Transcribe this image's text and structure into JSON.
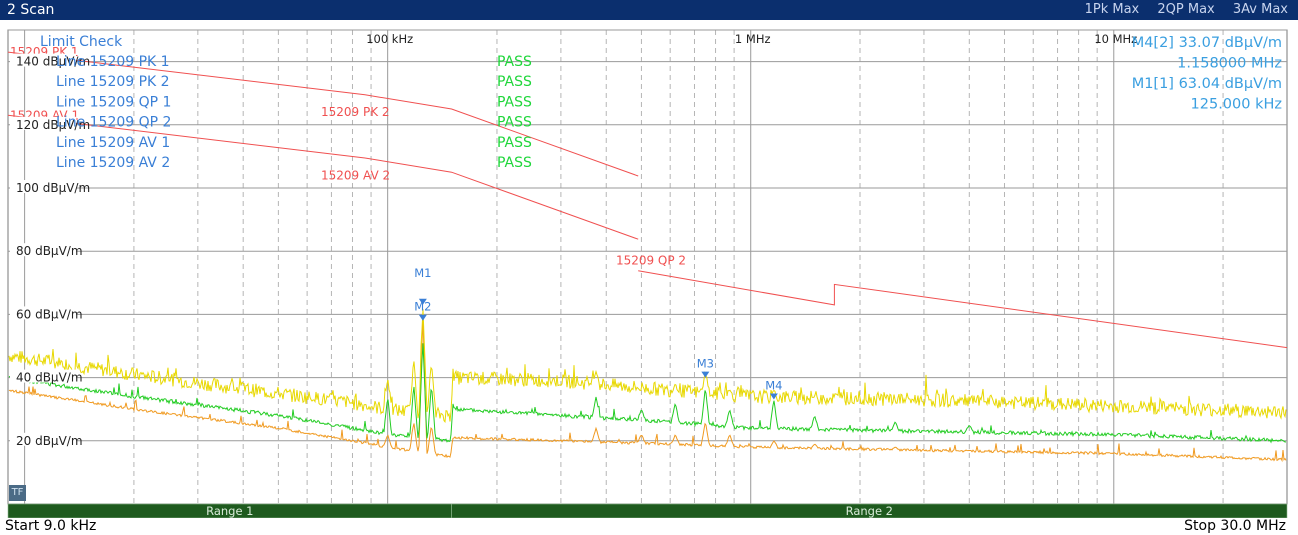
{
  "window": {
    "title": "2 Scan"
  },
  "legend": [
    {
      "label": "1Pk Max",
      "color": "#e8d800"
    },
    {
      "label": "2QP Max",
      "color": "#22cc22"
    },
    {
      "label": "3Av Max",
      "color": "#f09a20"
    }
  ],
  "footer": {
    "start": "Start 9.0 kHz",
    "stop": "Stop 30.0 MHz"
  },
  "badge": "TF",
  "limit_check": {
    "header": "Limit Check",
    "rows": [
      {
        "line": "Line 15209 PK 1",
        "result": "PASS"
      },
      {
        "line": "Line 15209 PK 2",
        "result": "PASS"
      },
      {
        "line": "Line 15209 QP 1",
        "result": "PASS"
      },
      {
        "line": "Line 15209 QP 2",
        "result": "PASS"
      },
      {
        "line": "Line 15209 AV 1",
        "result": "PASS"
      },
      {
        "line": "Line 15209 AV 2",
        "result": "PASS"
      }
    ]
  },
  "marker_info": [
    "M4[2] 33.07 dBµV/m",
    "1.158000 MHz",
    "M1[1] 63.04 dBµV/m",
    "125.000 kHz"
  ],
  "ranges": [
    {
      "label": "Range 1",
      "x_start": 0.009,
      "x_end": 0.15
    },
    {
      "label": "Range 2",
      "x_start": 0.15,
      "x_end": 30
    }
  ],
  "chart_data": {
    "type": "line",
    "x_scale": "log",
    "xlim": [
      0.009,
      30
    ],
    "x_unit": "MHz",
    "ylim": [
      0,
      150
    ],
    "x_tick_labels": [
      {
        "x": 0.1,
        "label": "100 kHz"
      },
      {
        "x": 1,
        "label": "1 MHz"
      },
      {
        "x": 10,
        "label": "10 MHz"
      }
    ],
    "y_tick_labels": [
      {
        "y": 140,
        "label": "140 dBµV/m"
      },
      {
        "y": 120,
        "label": "120 dBµV/m"
      },
      {
        "y": 100,
        "label": "100 dBµV/m"
      },
      {
        "y": 80,
        "label": "80 dBµV/m"
      },
      {
        "y": 60,
        "label": "60 dBµV/m"
      },
      {
        "y": 40,
        "label": "40 dBµV/m"
      },
      {
        "y": 20,
        "label": "20 dBµV/m"
      }
    ],
    "limit_lines": [
      {
        "name": "15209 PK 1",
        "color": "#f05050",
        "points": [
          [
            0.009,
            143
          ],
          [
            0.0866,
            129.5
          ]
        ]
      },
      {
        "name": "15209 PK 2",
        "color": "#f05050",
        "points": [
          [
            0.0866,
            129.5
          ],
          [
            0.15,
            125
          ],
          [
            0.49,
            103.8
          ]
        ]
      },
      {
        "name": "15209 AV 1",
        "color": "#f05050",
        "points": [
          [
            0.009,
            123
          ],
          [
            0.0866,
            109.5
          ]
        ]
      },
      {
        "name": "15209 AV 2",
        "color": "#f05050",
        "points": [
          [
            0.0866,
            109.5
          ],
          [
            0.15,
            105
          ],
          [
            0.49,
            83.8
          ]
        ]
      },
      {
        "name": "15209 QP 2",
        "color": "#f05050",
        "points": [
          [
            0.49,
            73.8
          ],
          [
            1.7,
            63
          ],
          [
            1.7,
            69.5
          ],
          [
            30,
            49.5
          ]
        ]
      }
    ],
    "limit_labels": [
      {
        "text": "15209 PK 1",
        "x": 0.009,
        "y": 143
      },
      {
        "text": "15209 AV 1",
        "x": 0.009,
        "y": 123
      },
      {
        "text": "15209 PK 2",
        "x": 0.0647,
        "y": 124
      },
      {
        "text": "15209 AV 2",
        "x": 0.0647,
        "y": 104
      },
      {
        "text": "15209 QP 2",
        "x": 0.42,
        "y": 77
      }
    ],
    "series": [
      {
        "name": "1Pk Max",
        "color": "#e8d800",
        "seed": 7,
        "noise": 2.2,
        "spur": 2,
        "base": [
          [
            0.009,
            47
          ],
          [
            0.02,
            41
          ],
          [
            0.05,
            35
          ],
          [
            0.08,
            32
          ],
          [
            0.1,
            30
          ],
          [
            0.149,
            28
          ],
          [
            0.151,
            40
          ],
          [
            0.3,
            39
          ],
          [
            0.6,
            36
          ],
          [
            1,
            34
          ],
          [
            3,
            33
          ],
          [
            10,
            31
          ],
          [
            30,
            29
          ]
        ]
      },
      {
        "name": "2QP Max",
        "color": "#22cc22",
        "seed": 13,
        "noise": 0.6,
        "spur": 1,
        "base": [
          [
            0.009,
            40
          ],
          [
            0.02,
            34
          ],
          [
            0.05,
            28
          ],
          [
            0.08,
            24
          ],
          [
            0.1,
            22
          ],
          [
            0.149,
            20
          ],
          [
            0.151,
            30
          ],
          [
            0.3,
            28
          ],
          [
            0.6,
            26
          ],
          [
            1,
            24
          ],
          [
            3,
            23
          ],
          [
            10,
            22
          ],
          [
            30,
            20
          ]
        ]
      },
      {
        "name": "3Av Max",
        "color": "#f09a20",
        "seed": 29,
        "noise": 0.4,
        "spur": 1,
        "base": [
          [
            0.009,
            36
          ],
          [
            0.02,
            30
          ],
          [
            0.05,
            24
          ],
          [
            0.08,
            20
          ],
          [
            0.1,
            18
          ],
          [
            0.149,
            15
          ],
          [
            0.151,
            21
          ],
          [
            0.3,
            20
          ],
          [
            0.6,
            19
          ],
          [
            1,
            18
          ],
          [
            3,
            17
          ],
          [
            10,
            16
          ],
          [
            30,
            14
          ]
        ]
      }
    ],
    "spurs": [
      {
        "x": 0.0125,
        "h": [
          44,
          36,
          28
        ]
      },
      {
        "x": 0.0184,
        "h": [
          40,
          32,
          26
        ]
      },
      {
        "x": 0.025,
        "h": [
          39,
          31,
          24
        ]
      },
      {
        "x": 0.0375,
        "h": [
          36,
          28,
          22
        ]
      },
      {
        "x": 0.05,
        "h": [
          34,
          27,
          21
        ]
      },
      {
        "x": 0.0625,
        "h": [
          33,
          26,
          20
        ]
      },
      {
        "x": 0.075,
        "h": [
          33,
          25,
          19
        ]
      },
      {
        "x": 0.1,
        "h": [
          40,
          34,
          22
        ]
      },
      {
        "x": 0.118,
        "h": [
          46,
          38,
          26
        ]
      },
      {
        "x": 0.125,
        "h": [
          63,
          52,
          60
        ]
      },
      {
        "x": 0.132,
        "h": [
          45,
          38,
          25
        ]
      },
      {
        "x": 0.375,
        "h": [
          42,
          34,
          24
        ]
      },
      {
        "x": 0.5,
        "h": [
          36,
          30,
          22
        ]
      },
      {
        "x": 0.62,
        "h": [
          38,
          32,
          22
        ]
      },
      {
        "x": 0.75,
        "h": [
          42,
          37,
          26
        ]
      },
      {
        "x": 0.875,
        "h": [
          36,
          30,
          22
        ]
      },
      {
        "x": 1.158,
        "h": [
          36,
          33,
          20
        ]
      },
      {
        "x": 1.5,
        "h": [
          34,
          28,
          19
        ]
      },
      {
        "x": 2.5,
        "h": [
          32,
          26,
          18
        ]
      },
      {
        "x": 4,
        "h": [
          31,
          25,
          17
        ]
      }
    ],
    "markers": [
      {
        "label": "M1",
        "x": 0.125,
        "y": 63.04,
        "label_offset": 2
      },
      {
        "label": "M2",
        "x": 0.125,
        "y": 58,
        "label_offset": 1
      },
      {
        "label": "M3",
        "x": 0.75,
        "y": 40,
        "label_offset": 1
      },
      {
        "label": "M4",
        "x": 1.158,
        "y": 33.07,
        "label_offset": 1
      }
    ]
  }
}
